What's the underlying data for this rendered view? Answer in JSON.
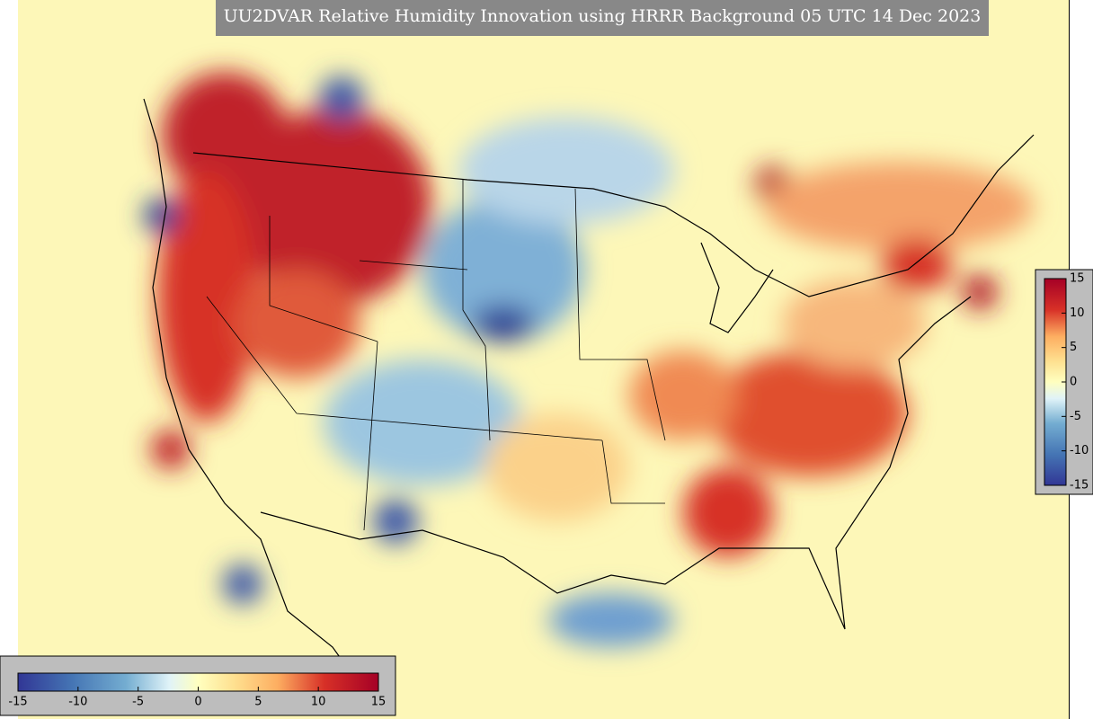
{
  "title": "UU2DVAR Relative Humidity Innovation using HRRR Background 05 UTC 14 Dec 2023",
  "colorbar": {
    "range": [
      -15,
      15
    ],
    "ticks": [
      -15,
      -10,
      -5,
      0,
      5,
      10,
      15
    ]
  }
}
